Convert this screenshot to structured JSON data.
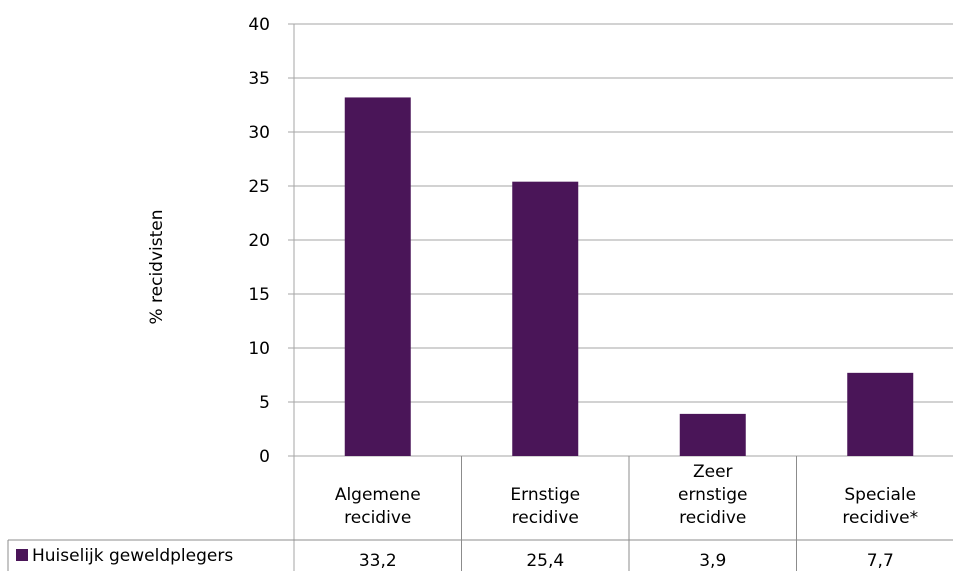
{
  "chart_data": {
    "type": "bar",
    "categories": [
      [
        "Algemene",
        "recidive"
      ],
      [
        "Ernstige",
        "recidive"
      ],
      [
        "Zeer",
        "ernstige",
        "recidive"
      ],
      [
        "Speciale",
        "recidive*"
      ]
    ],
    "series": [
      {
        "name": "Huiselijk geweldplegers",
        "values": [
          33.2,
          25.4,
          3.9,
          7.7
        ],
        "labels": [
          "33,2",
          "25,4",
          "3,9",
          "7,7"
        ],
        "color": "#4a1558"
      }
    ],
    "ylabel": "% recidvisten",
    "ylim": [
      0,
      40
    ],
    "yticks": [
      0,
      5,
      10,
      15,
      20,
      25,
      30,
      35,
      40
    ],
    "grid": true,
    "legend": "data-table",
    "colors": {
      "grid": "#a6a6a6",
      "table_border": "#8c8c8c"
    }
  }
}
